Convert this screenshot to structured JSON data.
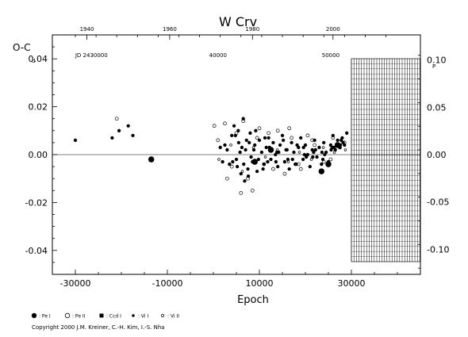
{
  "chart_data": {
    "type": "scatter",
    "title": "W  Crv",
    "ylabel": "O-C",
    "ylabel_unit": "d",
    "xlabel": "Epoch",
    "x_ticks": [
      -30000,
      -10000,
      10000,
      30000
    ],
    "x_tick_labels": [
      "-30000",
      "-10000",
      "10000",
      "30000"
    ],
    "xlim": [
      -35000,
      45000
    ],
    "y_left_ticks": [
      0.04,
      0.02,
      0.0,
      -0.02,
      -0.04
    ],
    "y_left_tick_labels": [
      "0.04",
      "0.02",
      "0.00",
      "-0.02",
      "-0.04"
    ],
    "ylim": [
      -0.05,
      0.05
    ],
    "top_axis": {
      "year_ticks": [
        "1940",
        "1960",
        "1980",
        "2000"
      ],
      "jd_labels": [
        "JD 2430000",
        "40000",
        "50000"
      ]
    },
    "right_axis": {
      "ticks": [
        0.1,
        0.05,
        0.0,
        -0.05,
        -0.1
      ],
      "tick_labels": [
        "0.10",
        "0.05",
        "0.00",
        "-0.05",
        "-0.10"
      ],
      "unit": "P"
    },
    "zero_line": true,
    "future_region_start_epoch": 30000,
    "legend": [
      {
        "symbol": "filled-large",
        "label": ": Pe I"
      },
      {
        "symbol": "open",
        "label": ": Pe II"
      },
      {
        "symbol": "square",
        "label": ": Ccd I"
      },
      {
        "symbol": "filled-small",
        "label": ": Vi I"
      },
      {
        "symbol": "open-small",
        "label": ": Vi II"
      }
    ],
    "series": [
      {
        "name": "Pe I",
        "x": [
          -13500,
          23500,
          25000,
          12500,
          9000,
          27000
        ],
        "y": [
          -0.002,
          -0.007,
          -0.004,
          0.002,
          -0.003,
          0.004
        ]
      },
      {
        "name": "Pe II",
        "x": [
          -21000,
          200,
          1000,
          2500,
          4000,
          5000,
          6500,
          7500,
          8500,
          10000,
          11000,
          12000,
          14000,
          15500,
          17000,
          19000,
          20500,
          22000,
          24000,
          26000,
          27500,
          28500,
          3000,
          6000,
          9500,
          13000,
          16500,
          18500,
          21500,
          25500
        ],
        "y": [
          0.015,
          0.012,
          0.006,
          0.013,
          -0.005,
          0.009,
          0.014,
          -0.01,
          -0.015,
          0.011,
          -0.004,
          0.009,
          0.01,
          -0.008,
          0.007,
          -0.006,
          0.008,
          0.004,
          -0.003,
          0.007,
          0.003,
          0.005,
          -0.01,
          -0.016,
          0.007,
          -0.006,
          0.011,
          -0.004,
          0.006,
          -0.002
        ]
      },
      {
        "name": "Vi I",
        "x": [
          -30000,
          -22000,
          -20500,
          -18500,
          -17500,
          1500,
          2000,
          3000,
          3500,
          4000,
          4500,
          5000,
          5500,
          6000,
          6500,
          7000,
          7500,
          8000,
          8500,
          9000,
          9500,
          10000,
          10500,
          11000,
          11500,
          12000,
          12500,
          13000,
          13500,
          14000,
          14500,
          15000,
          15500,
          16000,
          16500,
          17000,
          17500,
          18000,
          18500,
          19000,
          19500,
          20000,
          20500,
          21000,
          21500,
          22000,
          22500,
          23000,
          23500,
          24000,
          24500,
          25000,
          25500,
          26000,
          26500,
          27000,
          27500,
          28000,
          28500,
          29000,
          2500,
          4200,
          5800,
          6800,
          7200,
          8200,
          9200,
          10800,
          12200,
          14200,
          16200,
          18200,
          20200,
          22200,
          24200,
          26200,
          28200,
          5200,
          6200,
          7600,
          8800,
          11200,
          13600,
          15200,
          17200,
          19600,
          21600,
          23600,
          25600,
          27600,
          4800,
          5400,
          6600,
          7800,
          9800,
          11800,
          13800,
          15800,
          17800,
          19800,
          21800,
          23800,
          25800,
          27800
        ],
        "y": [
          0.006,
          0.007,
          0.01,
          0.012,
          0.008,
          0.003,
          -0.003,
          0.002,
          -0.004,
          0.008,
          0.012,
          -0.002,
          0.005,
          -0.008,
          0.015,
          0.002,
          -0.006,
          0.009,
          -0.003,
          0.004,
          -0.007,
          0.006,
          0.001,
          -0.004,
          0.003,
          0.007,
          -0.002,
          0.005,
          0.0,
          -0.005,
          0.004,
          0.008,
          -0.003,
          0.002,
          -0.006,
          0.005,
          0.001,
          -0.004,
          0.003,
          0.007,
          -0.002,
          0.004,
          0.0,
          -0.005,
          0.002,
          0.006,
          -0.001,
          0.003,
          -0.004,
          0.005,
          0.001,
          -0.003,
          0.004,
          0.008,
          0.002,
          0.006,
          0.003,
          0.007,
          0.004,
          0.009,
          0.004,
          -0.003,
          0.001,
          -0.011,
          0.006,
          -0.001,
          0.01,
          -0.006,
          0.003,
          0.001,
          -0.002,
          0.004,
          -0.001,
          0.002,
          0.0,
          0.003,
          0.005,
          -0.005,
          0.003,
          -0.009,
          0.002,
          0.007,
          -0.003,
          0.006,
          -0.002,
          0.003,
          -0.001,
          0.001,
          0.002,
          0.004,
          0.008,
          0.01,
          -0.004,
          0.005,
          -0.002,
          -0.003,
          0.001,
          0.002,
          -0.004,
          0.0,
          0.001,
          -0.002,
          0.003,
          0.006
        ]
      },
      {
        "name": "Vi II",
        "x": [
          1200,
          3800,
          6300,
          8700,
          11300,
          13900,
          16300,
          18700,
          21300,
          23900,
          26300,
          28700
        ],
        "y": [
          -0.002,
          0.004,
          -0.007,
          0.003,
          -0.001,
          0.002,
          -0.003,
          0.001,
          -0.002,
          0.003,
          0.001,
          0.002
        ]
      }
    ]
  },
  "copyright": "Copyright 2000 J.M. Kreiner, C.-H. Kim, I.-S. Nha"
}
